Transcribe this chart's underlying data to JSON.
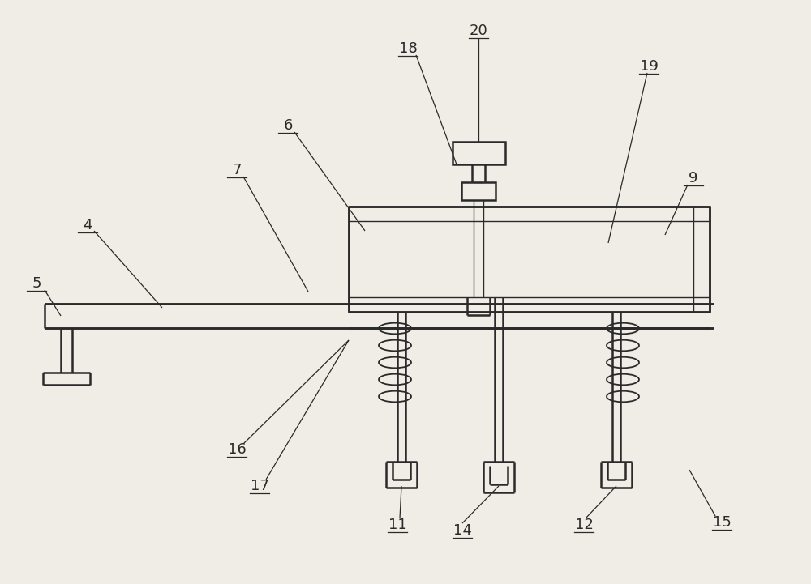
{
  "bg_color": "#f0ede6",
  "line_color": "#2a2a2a",
  "label_color": "#2a2a2a",
  "lw_main": 1.8,
  "lw_thin": 1.0,
  "lw_leader": 0.9,
  "font_size": 13
}
